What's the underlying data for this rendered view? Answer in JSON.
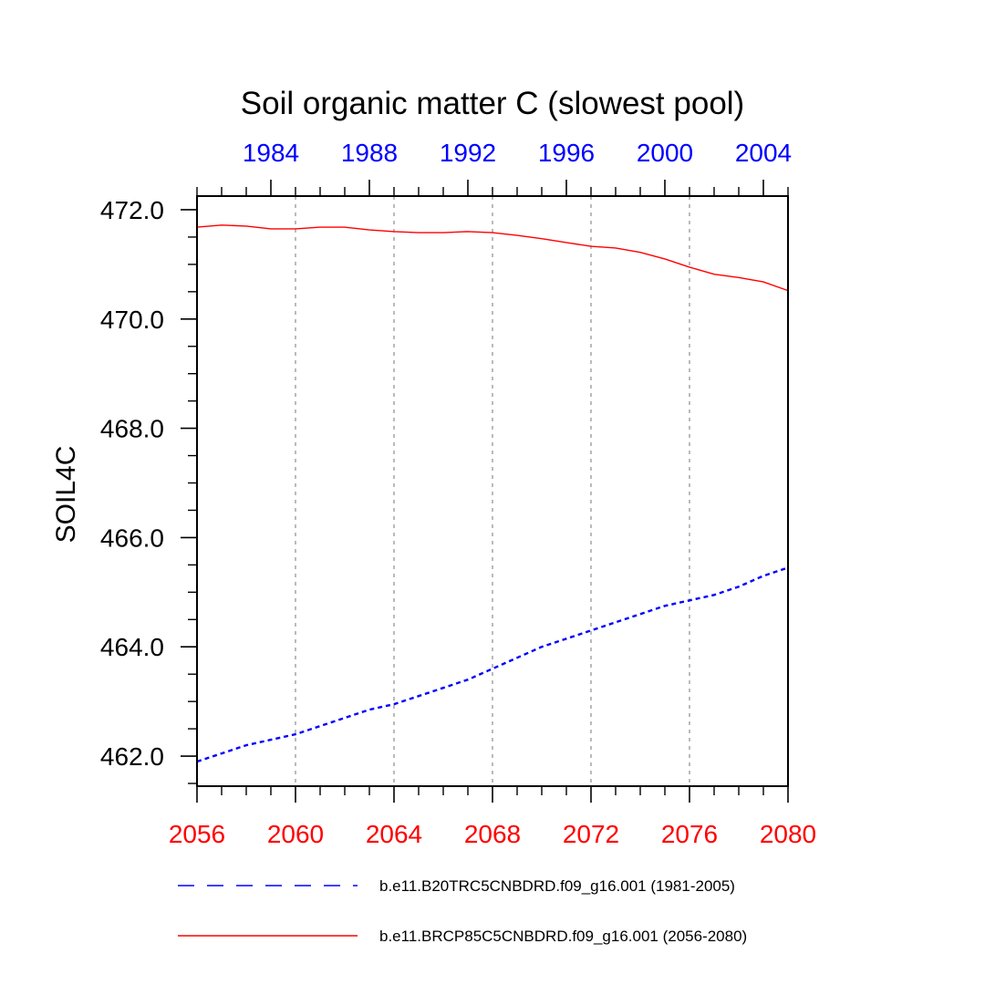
{
  "chart_data": {
    "type": "line",
    "title": "Soil organic matter C (slowest pool)",
    "ylabel": "SOIL4C",
    "xlabel": "",
    "grid": "vertical dashed",
    "x_bottom": {
      "range": [
        2056,
        2080
      ],
      "ticks": [
        "2056",
        "2060",
        "2064",
        "2068",
        "2072",
        "2076",
        "2080"
      ],
      "color": "#ff0000"
    },
    "x_top": {
      "range": [
        1981,
        2005
      ],
      "ticks": [
        "1984",
        "1988",
        "1992",
        "1996",
        "2000",
        "2004"
      ],
      "color": "#0000ff"
    },
    "ylim": [
      461.45,
      472.25
    ],
    "y_ticks": [
      "462.0",
      "464.0",
      "466.0",
      "468.0",
      "470.0",
      "472.0"
    ],
    "legend_position": "bottom",
    "series": [
      {
        "name": "b.e11.B20TRC5CNBDRD.f09_g16.001 (1981-2005)",
        "color": "#0000ff",
        "style": "dashed",
        "axis": "top",
        "x": [
          1981,
          1982,
          1983,
          1984,
          1985,
          1986,
          1987,
          1988,
          1989,
          1990,
          1991,
          1992,
          1993,
          1994,
          1995,
          1996,
          1997,
          1998,
          1999,
          2000,
          2001,
          2002,
          2003,
          2004,
          2005
        ],
        "values": [
          461.9,
          462.05,
          462.2,
          462.3,
          462.4,
          462.55,
          462.7,
          462.85,
          462.95,
          463.1,
          463.25,
          463.4,
          463.6,
          463.8,
          464.0,
          464.15,
          464.3,
          464.45,
          464.6,
          464.75,
          464.85,
          464.95,
          465.1,
          465.3,
          465.45
        ]
      },
      {
        "name": "b.e11.BRCP85C5CNBDRD.f09_g16.001 (2056-2080)",
        "color": "#ff0000",
        "style": "solid",
        "axis": "bottom",
        "x": [
          2056,
          2057,
          2058,
          2059,
          2060,
          2061,
          2062,
          2063,
          2064,
          2065,
          2066,
          2067,
          2068,
          2069,
          2070,
          2071,
          2072,
          2073,
          2074,
          2075,
          2076,
          2077,
          2078,
          2079,
          2080
        ],
        "values": [
          471.68,
          471.72,
          471.7,
          471.65,
          471.65,
          471.68,
          471.68,
          471.63,
          471.6,
          471.58,
          471.58,
          471.6,
          471.58,
          471.53,
          471.47,
          471.4,
          471.33,
          471.3,
          471.22,
          471.1,
          470.95,
          470.82,
          470.76,
          470.68,
          470.52
        ]
      }
    ]
  }
}
